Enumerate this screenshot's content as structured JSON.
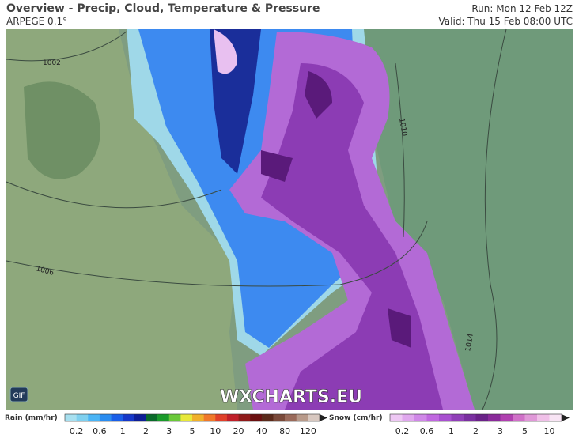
{
  "header": {
    "title": "Overview - Precip, Cloud, Temperature & Pressure",
    "model": "ARPEGE 0.1°",
    "run": "Run: Mon 12 Feb 12Z",
    "valid": "Valid: Thu 15 Feb 08:00 UTC"
  },
  "map": {
    "isobar_labels": [
      "1002",
      "1006",
      "1010",
      "1014"
    ],
    "watermark": "WXCHARTS.EU",
    "gif_button": "GIF"
  },
  "legend": {
    "rain": {
      "title": "Rain (mm/hr)",
      "ticks": [
        "0.2",
        "0.6",
        "1",
        "2",
        "3",
        "5",
        "10",
        "20",
        "40",
        "80",
        "120"
      ],
      "colors": [
        "#a8e0f0",
        "#7fd0ef",
        "#4ab4f5",
        "#2a8cf0",
        "#1a5ee8",
        "#1637c8",
        "#0e1e96",
        "#0a6a2a",
        "#1a9a2a",
        "#6ac83a",
        "#e8e83a",
        "#f0b02a",
        "#f0782a",
        "#e0402a",
        "#c0202a",
        "#901a1a",
        "#6a1010",
        "#5a2a1a",
        "#7a4a3a",
        "#9a6a5a",
        "#b89a8a",
        "#d8c8c0"
      ]
    },
    "snow": {
      "title": "Snow (cm/hr)",
      "ticks": [
        "0.2",
        "0.6",
        "1",
        "2",
        "3",
        "5",
        "10"
      ],
      "colors": [
        "#eec8f4",
        "#e0a8ee",
        "#d088e8",
        "#c068e0",
        "#a850d0",
        "#9040b8",
        "#7a30a0",
        "#6a2288",
        "#8a2a9a",
        "#b040b0",
        "#d070c8",
        "#e098d8",
        "#f0c0e8",
        "#f8e4f4"
      ]
    }
  }
}
